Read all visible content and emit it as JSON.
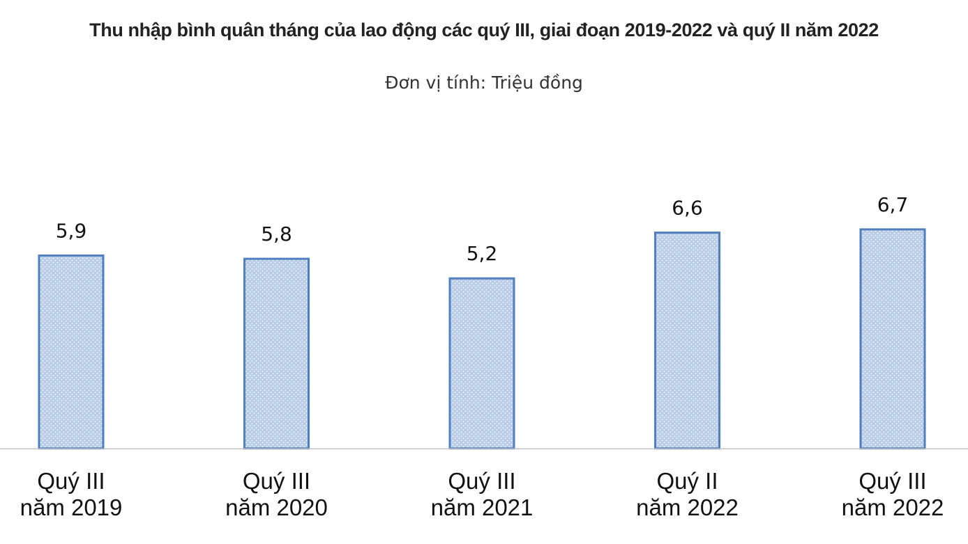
{
  "title": "Thu nhập bình quân tháng của lao động các quý III, giai đoạn 2019-2022 và quý II năm 2022",
  "subtitle": "Đơn vị tính: Triệu đồng",
  "chart_data": {
    "type": "bar",
    "title": "Thu nhập bình quân tháng của lao động các quý III, giai đoạn 2019-2022 và quý II năm 2022",
    "subtitle": "Đơn vị tính: Triệu đồng",
    "categories": [
      [
        "Quý III",
        "năm 2019"
      ],
      [
        "Quý III",
        "năm 2020"
      ],
      [
        "Quý III",
        "năm 2021"
      ],
      [
        "Quý II",
        "năm 2022"
      ],
      [
        "Quý III",
        "năm 2022"
      ]
    ],
    "values": [
      5.9,
      5.8,
      5.2,
      6.6,
      6.7
    ],
    "value_labels": [
      "5,9",
      "5,8",
      "5,2",
      "6,6",
      "6,7"
    ],
    "ylim": [
      0,
      12
    ],
    "grid": false,
    "legend": "none",
    "colors": {
      "bar_fill": "#b9cce8",
      "bar_dot": "#ffffff",
      "bar_stroke": "#4f7fbf",
      "axis": "#bfbfbf"
    }
  }
}
